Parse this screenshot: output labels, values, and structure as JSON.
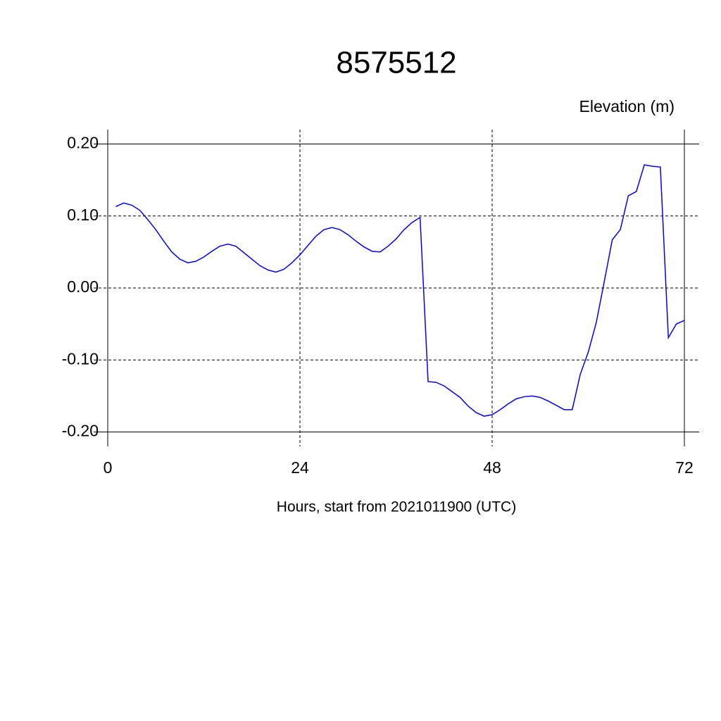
{
  "chart_data": {
    "type": "line",
    "title": "8575512",
    "y_label": "Elevation (m)",
    "x_label": "Hours, start from 2021011900 (UTC)",
    "x": [
      1,
      2,
      3,
      4,
      5,
      6,
      7,
      8,
      9,
      10,
      11,
      12,
      13,
      14,
      15,
      16,
      17,
      18,
      19,
      20,
      21,
      22,
      23,
      24,
      25,
      26,
      27,
      28,
      29,
      30,
      31,
      32,
      33,
      34,
      35,
      36,
      37,
      38,
      39,
      40,
      41,
      42,
      43,
      44,
      45,
      46,
      47,
      48,
      49,
      50,
      51,
      52,
      53,
      54,
      55,
      56,
      57,
      58,
      59,
      60,
      61,
      62,
      63,
      64,
      65,
      66,
      67,
      68,
      69,
      70,
      71,
      72
    ],
    "series": [
      {
        "name": "Elevation",
        "color": "#0000ff",
        "values": [
          0.113,
          0.118,
          0.115,
          0.108,
          0.095,
          0.081,
          0.065,
          0.05,
          0.04,
          0.035,
          0.037,
          0.043,
          0.051,
          0.058,
          0.061,
          0.058,
          0.049,
          0.04,
          0.031,
          0.025,
          0.022,
          0.026,
          0.035,
          0.046,
          0.059,
          0.072,
          0.081,
          0.084,
          0.081,
          0.074,
          0.065,
          0.057,
          0.051,
          0.05,
          0.058,
          0.068,
          0.081,
          0.091,
          0.098,
          -0.13,
          -0.131,
          -0.136,
          -0.144,
          -0.152,
          -0.164,
          -0.173,
          -0.178,
          -0.176,
          -0.169,
          -0.161,
          -0.154,
          -0.151,
          -0.15,
          -0.152,
          -0.157,
          -0.163,
          -0.169,
          -0.169,
          -0.12,
          -0.089,
          -0.048,
          0.009,
          0.067,
          0.081,
          0.128,
          0.134,
          0.171,
          0.169,
          0.168,
          -0.069,
          -0.05,
          -0.045
        ]
      }
    ],
    "xlim": [
      0,
      72
    ],
    "ylim": [
      -0.22,
      0.22
    ],
    "xticks": [
      0,
      24,
      48,
      72
    ],
    "yticks": [
      {
        "value": 0.2,
        "label": "0.20"
      },
      {
        "value": 0.1,
        "label": "0.10"
      },
      {
        "value": 0,
        "label": "0.00"
      },
      {
        "value": -0.1,
        "label": "-0.10"
      },
      {
        "value": -0.2,
        "label": "-0.20"
      }
    ],
    "grid": true
  }
}
